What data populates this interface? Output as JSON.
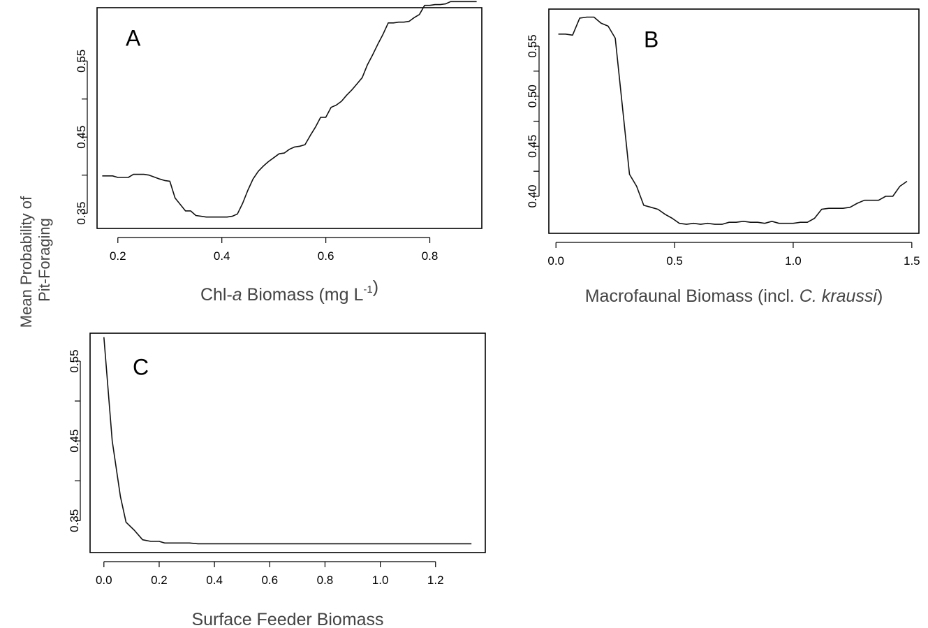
{
  "shared_ylabel": [
    "Mean Probability of",
    "Pit-Foraging"
  ],
  "chart_data": [
    {
      "type": "line",
      "panel_label": "A",
      "xlabel_parts": [
        {
          "text": "Chl-",
          "style": "normal"
        },
        {
          "text": "a",
          "style": "italic"
        },
        {
          "text": " Biomass (mg L",
          "style": "normal"
        },
        {
          "text": "-1",
          "style": "super"
        },
        {
          "text": ")",
          "style": "normal"
        }
      ],
      "xlim": [
        0.16,
        0.9
      ],
      "ylim": [
        0.33,
        0.62
      ],
      "xticks": [
        0.2,
        0.4,
        0.6,
        0.8
      ],
      "xtick_labels": [
        "0.2",
        "0.4",
        "0.6",
        "0.8"
      ],
      "yticks": [
        0.35,
        0.45,
        0.55
      ],
      "ytick_labels": [
        "0.35",
        "0.45",
        "0.55"
      ],
      "x": [
        0.17,
        0.19,
        0.2,
        0.22,
        0.23,
        0.25,
        0.26,
        0.28,
        0.29,
        0.3,
        0.31,
        0.33,
        0.34,
        0.35,
        0.36,
        0.37,
        0.38,
        0.39,
        0.4,
        0.41,
        0.42,
        0.43,
        0.44,
        0.45,
        0.46,
        0.47,
        0.48,
        0.49,
        0.5,
        0.51,
        0.52,
        0.53,
        0.54,
        0.55,
        0.56,
        0.57,
        0.58,
        0.59,
        0.6,
        0.61,
        0.62,
        0.63,
        0.64,
        0.65,
        0.66,
        0.67,
        0.68,
        0.69,
        0.7,
        0.71,
        0.72,
        0.73,
        0.74,
        0.75,
        0.76,
        0.77,
        0.78,
        0.79,
        0.8,
        0.81,
        0.82,
        0.83,
        0.84,
        0.85,
        0.86,
        0.87,
        0.88,
        0.89
      ],
      "y": [
        0.399,
        0.399,
        0.397,
        0.397,
        0.401,
        0.401,
        0.4,
        0.395,
        0.393,
        0.392,
        0.37,
        0.353,
        0.353,
        0.347,
        0.346,
        0.345,
        0.345,
        0.345,
        0.345,
        0.345,
        0.346,
        0.349,
        0.363,
        0.38,
        0.395,
        0.405,
        0.412,
        0.418,
        0.423,
        0.428,
        0.429,
        0.434,
        0.437,
        0.438,
        0.44,
        0.452,
        0.463,
        0.476,
        0.476,
        0.489,
        0.492,
        0.497,
        0.505,
        0.512,
        0.52,
        0.528,
        0.545,
        0.558,
        0.572,
        0.585,
        0.6,
        0.6,
        0.601,
        0.601,
        0.602,
        0.607,
        0.611,
        0.623,
        0.623,
        0.624,
        0.624,
        0.625,
        0.628,
        0.628,
        0.628,
        0.628,
        0.628,
        0.628
      ]
    },
    {
      "type": "line",
      "panel_label": "B",
      "xlabel_parts": [
        {
          "text": "Macrofaunal Biomass (incl. ",
          "style": "normal"
        },
        {
          "text": "C. kraussi",
          "style": "italic"
        },
        {
          "text": ")",
          "style": "normal"
        }
      ],
      "xlim": [
        -0.03,
        1.53
      ],
      "ylim": [
        0.363,
        0.587
      ],
      "xticks": [
        0.0,
        0.5,
        1.0,
        1.5
      ],
      "xtick_labels": [
        "0.0",
        "0.5",
        "1.0",
        "1.5"
      ],
      "yticks": [
        0.4,
        0.45,
        0.5,
        0.55
      ],
      "ytick_labels": [
        "0.40",
        "0.45",
        "0.50",
        "0.55"
      ],
      "x": [
        0.01,
        0.04,
        0.07,
        0.1,
        0.13,
        0.16,
        0.19,
        0.22,
        0.25,
        0.28,
        0.31,
        0.34,
        0.37,
        0.4,
        0.43,
        0.46,
        0.49,
        0.52,
        0.55,
        0.58,
        0.61,
        0.64,
        0.67,
        0.7,
        0.73,
        0.76,
        0.79,
        0.82,
        0.85,
        0.88,
        0.91,
        0.94,
        0.97,
        1.0,
        1.03,
        1.06,
        1.09,
        1.12,
        1.15,
        1.18,
        1.21,
        1.24,
        1.27,
        1.3,
        1.33,
        1.36,
        1.39,
        1.42,
        1.45,
        1.48
      ],
      "y": [
        0.562,
        0.562,
        0.561,
        0.578,
        0.579,
        0.579,
        0.573,
        0.57,
        0.558,
        0.49,
        0.422,
        0.41,
        0.391,
        0.389,
        0.387,
        0.382,
        0.378,
        0.373,
        0.372,
        0.373,
        0.372,
        0.373,
        0.372,
        0.372,
        0.374,
        0.374,
        0.375,
        0.374,
        0.374,
        0.373,
        0.375,
        0.373,
        0.373,
        0.373,
        0.374,
        0.374,
        0.378,
        0.387,
        0.388,
        0.388,
        0.388,
        0.389,
        0.393,
        0.396,
        0.396,
        0.396,
        0.4,
        0.4,
        0.41,
        0.415
      ]
    },
    {
      "type": "line",
      "panel_label": "C",
      "xlabel_parts": [
        {
          "text": "Surface Feeder Biomass",
          "style": "normal"
        }
      ],
      "xlim": [
        -0.05,
        1.38
      ],
      "ylim": [
        0.31,
        0.585
      ],
      "xticks": [
        0.0,
        0.2,
        0.4,
        0.6,
        0.8,
        1.0,
        1.2
      ],
      "xtick_labels": [
        "0.0",
        "0.2",
        "0.4",
        "0.6",
        "0.8",
        "1.0",
        "1.2"
      ],
      "yticks": [
        0.35,
        0.45,
        0.55
      ],
      "ytick_labels": [
        "0.35",
        "0.45",
        "0.55"
      ],
      "x": [
        0.0,
        0.03,
        0.06,
        0.08,
        0.11,
        0.14,
        0.17,
        0.2,
        0.22,
        0.25,
        0.28,
        0.31,
        0.34,
        0.4,
        0.5,
        0.6,
        0.7,
        0.8,
        0.9,
        1.0,
        1.1,
        1.2,
        1.33
      ],
      "y": [
        0.58,
        0.45,
        0.38,
        0.348,
        0.338,
        0.326,
        0.324,
        0.324,
        0.322,
        0.322,
        0.322,
        0.322,
        0.321,
        0.321,
        0.321,
        0.321,
        0.321,
        0.321,
        0.321,
        0.321,
        0.321,
        0.321,
        0.321
      ]
    }
  ]
}
